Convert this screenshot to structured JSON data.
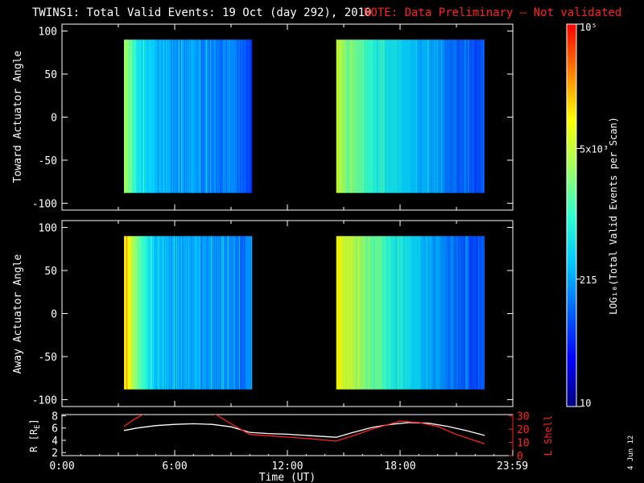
{
  "header": {
    "title": "TWINS1: Total Valid Events: 19 Oct (day 292), 2010",
    "note": "NOTE: Data Preliminary — Not validated",
    "note_color": "#ff2020"
  },
  "date_stamp": "4 Jun 12",
  "chart_data": [
    {
      "type": "heatmap",
      "panel": "toward",
      "ylabel": "Toward Actuator Angle",
      "xlim": [
        0,
        24
      ],
      "ylim": [
        -108,
        108
      ],
      "yticks": [
        100,
        50,
        0,
        -50,
        -100
      ],
      "grid": false,
      "coverage_utc_hours": [
        [
          3.3,
          10.1
        ],
        [
          14.6,
          22.5
        ]
      ],
      "actuator_angle_range_deg": [
        -88,
        90
      ],
      "columns_note": "mean level per time slice, 0 = 10 events, 1 = 1e5 events (log scale)",
      "time_hours": [
        3.3,
        3.6,
        4.0,
        4.5,
        5.0,
        5.5,
        6.0,
        6.5,
        7.0,
        7.5,
        8.0,
        8.5,
        9.0,
        9.5,
        10.0,
        14.6,
        14.9,
        15.2,
        15.6,
        16.0,
        16.5,
        17.0,
        17.5,
        18.0,
        18.5,
        19.0,
        19.5,
        20.0,
        20.5,
        21.0,
        21.5,
        22.0,
        22.4
      ],
      "level": [
        0.66,
        0.55,
        0.44,
        0.4,
        0.36,
        0.34,
        0.33,
        0.3,
        0.33,
        0.28,
        0.3,
        0.27,
        0.3,
        0.24,
        0.2,
        0.66,
        0.62,
        0.58,
        0.55,
        0.52,
        0.48,
        0.45,
        0.42,
        0.4,
        0.38,
        0.36,
        0.33,
        0.3,
        0.28,
        0.26,
        0.24,
        0.22,
        0.22
      ]
    },
    {
      "type": "heatmap",
      "panel": "away",
      "ylabel": "Away Actuator Angle",
      "xlim": [
        0,
        24
      ],
      "ylim": [
        -108,
        108
      ],
      "yticks": [
        100,
        50,
        0,
        -50,
        -100
      ],
      "grid": false,
      "coverage_utc_hours": [
        [
          3.3,
          10.1
        ],
        [
          14.6,
          22.5
        ]
      ],
      "actuator_angle_range_deg": [
        -88,
        90
      ],
      "columns_note": "mean level per time slice, 0 = 10 events, 1 = 1e5 events (log scale)",
      "time_hours": [
        3.3,
        3.6,
        4.0,
        4.5,
        5.0,
        5.5,
        6.0,
        6.5,
        7.0,
        7.5,
        8.0,
        8.5,
        9.0,
        9.5,
        10.0,
        14.6,
        14.9,
        15.2,
        15.6,
        16.0,
        16.5,
        17.0,
        17.5,
        18.0,
        18.5,
        19.0,
        19.5,
        20.0,
        20.5,
        21.0,
        21.5,
        22.0,
        22.4
      ],
      "level": [
        0.8,
        0.72,
        0.58,
        0.45,
        0.38,
        0.36,
        0.34,
        0.33,
        0.35,
        0.3,
        0.32,
        0.3,
        0.3,
        0.25,
        0.3,
        0.76,
        0.72,
        0.68,
        0.64,
        0.6,
        0.56,
        0.52,
        0.48,
        0.44,
        0.42,
        0.38,
        0.34,
        0.32,
        0.28,
        0.26,
        0.24,
        0.22,
        0.24
      ]
    },
    {
      "type": "line",
      "panel": "orbit",
      "xlabel": "Time (UT)",
      "xlim": [
        0,
        24
      ],
      "xtick_labels": [
        "0:00",
        "6:00",
        "12:00",
        "18:00",
        "23:59"
      ],
      "xtick_values": [
        0,
        6,
        12,
        18,
        23.98
      ],
      "left_axis": {
        "label": "R [R",
        "label_sub": "E",
        "label_end": "]",
        "ylim": [
          1.5,
          8.2
        ],
        "ticks": [
          8,
          6,
          4,
          2
        ]
      },
      "right_axis": {
        "label": "L Shell",
        "color": "#ff2020",
        "ylim": [
          0,
          31
        ],
        "ticks": [
          30,
          20,
          10,
          0
        ]
      },
      "series": [
        {
          "axis": "left",
          "color": "#ffffff",
          "x": [
            3.3,
            4.0,
            5.0,
            6.0,
            7.0,
            8.0,
            9.0,
            10.0,
            11.0,
            12.0,
            13.0,
            14.6,
            15.5,
            16.5,
            17.5,
            18.5,
            19.5,
            20.5,
            21.5,
            22.5
          ],
          "y": [
            5.6,
            6.0,
            6.4,
            6.6,
            6.7,
            6.6,
            6.2,
            5.3,
            5.1,
            5.0,
            4.8,
            4.5,
            5.3,
            6.1,
            6.6,
            6.9,
            6.8,
            6.3,
            5.6,
            4.8
          ]
        },
        {
          "axis": "right",
          "color": "#ff2020",
          "x": [
            3.3,
            3.5,
            3.8,
            4.2,
            4.4,
            7.9,
            8.2,
            9.0,
            10.0,
            11.0,
            12.0,
            13.0,
            14.6,
            15.5,
            16.5,
            17.5,
            18.0,
            19.0,
            20.0,
            21.0,
            22.5
          ],
          "y": [
            22,
            24,
            27,
            30,
            32,
            32,
            31,
            24,
            16,
            15,
            14,
            13,
            11,
            15,
            20,
            24,
            26,
            25,
            22,
            16,
            9
          ]
        }
      ]
    }
  ],
  "colorbar": {
    "label": "LOG₁₀(Total Valid Events per Scan)",
    "ticks": [
      {
        "value": 10,
        "text": "10"
      },
      {
        "value": 215,
        "text": "215"
      },
      {
        "value": 5000,
        "text": "5x10³"
      },
      {
        "value": 100000,
        "text": "10⁵"
      }
    ],
    "min": 10,
    "max": 100000,
    "scale": "log",
    "colormap": [
      "#000080",
      "#0000ff",
      "#0064ff",
      "#00c8ff",
      "#30ffd0",
      "#a0ff60",
      "#ffff00",
      "#ff8000",
      "#ff0000"
    ]
  }
}
